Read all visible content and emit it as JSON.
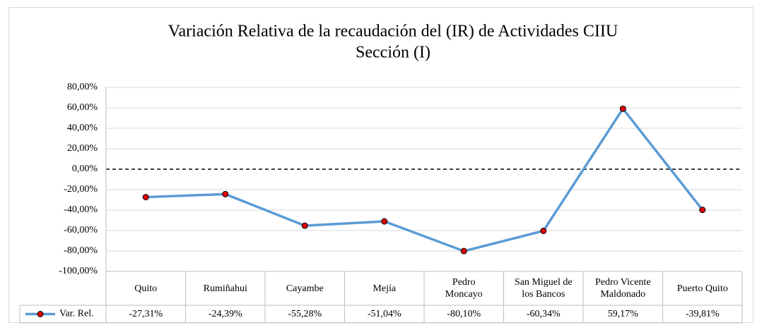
{
  "chart_data": {
    "type": "line",
    "title": "Variación Relativa de la recaudación del (IR) de Actividades CIIU",
    "subtitle": "Sección (I)",
    "categories": [
      "Quito",
      "Rumiñahui",
      "Cayambe",
      "Mejía",
      "Pedro Moncayo",
      "San Miguel de los Bancos",
      "Pedro Vicente Maldonado",
      "Puerto Quito"
    ],
    "series": [
      {
        "name": "Var. Rel.",
        "color": "#5b9bd5",
        "marker_color": "#e00000",
        "values": [
          -27.31,
          -24.39,
          -55.28,
          -51.04,
          -80.1,
          -60.34,
          59.17,
          -39.81
        ],
        "value_labels": [
          "-27,31%",
          "-24,39%",
          "-55,28%",
          "-51,04%",
          "-80,10%",
          "-60,34%",
          "59,17%",
          "-39,81%"
        ]
      }
    ],
    "ylim": [
      -100,
      80
    ],
    "yticks": [
      {
        "value": -100,
        "label": "-100,00%"
      },
      {
        "value": -80,
        "label": "-80,00%"
      },
      {
        "value": -60,
        "label": "-60,00%"
      },
      {
        "value": -40,
        "label": "-40,00%"
      },
      {
        "value": -20,
        "label": "-20,00%"
      },
      {
        "value": 0,
        "label": "0,00%"
      },
      {
        "value": 20,
        "label": "20,00%"
      },
      {
        "value": 40,
        "label": "40,00%"
      },
      {
        "value": 60,
        "label": "60,00%"
      },
      {
        "value": 80,
        "label": "80,00%"
      }
    ],
    "grid": true
  }
}
